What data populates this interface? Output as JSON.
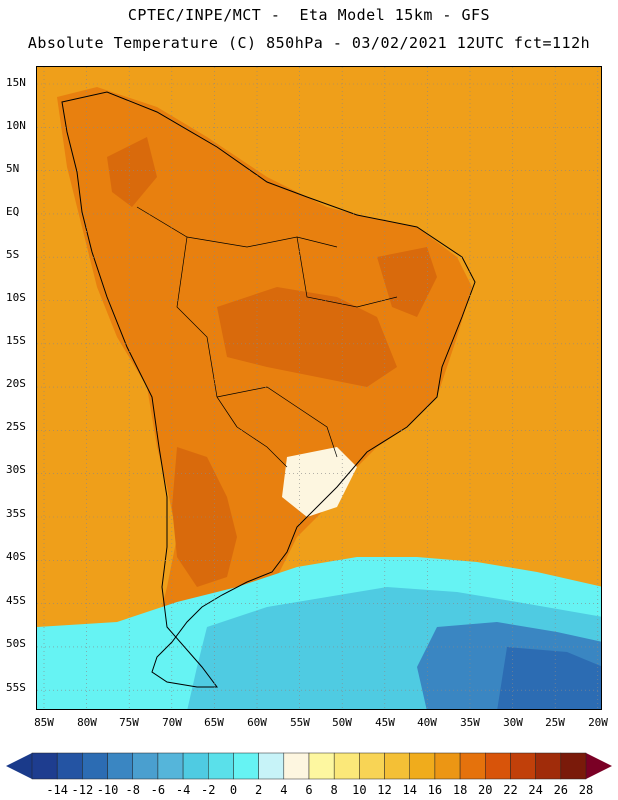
{
  "header": {
    "line1": "CPTEC/INPE/MCT -  Eta Model 15km - GFS",
    "line2": "Absolute Temperature (C) 850hPa - 03/02/2021 12UTC fct=112h"
  },
  "axes": {
    "lat_labels": [
      "15N",
      "10N",
      "5N",
      "EQ",
      "5S",
      "10S",
      "15S",
      "20S",
      "25S",
      "30S",
      "35S",
      "40S",
      "45S",
      "50S",
      "55S"
    ],
    "lon_labels": [
      "85W",
      "80W",
      "75W",
      "70W",
      "65W",
      "60W",
      "55W",
      "50W",
      "45W",
      "40W",
      "35W",
      "30W",
      "25W",
      "20W"
    ]
  },
  "colorbar": {
    "labels": [
      "-14",
      "-12",
      "-10",
      "-8",
      "-6",
      "-4",
      "-2",
      "0",
      "2",
      "4",
      "6",
      "8",
      "10",
      "12",
      "14",
      "16",
      "18",
      "20",
      "22",
      "24",
      "26",
      "28"
    ],
    "colors": [
      "#1e3d8f",
      "#2454a3",
      "#2c6cb3",
      "#3a86c2",
      "#4a9fcf",
      "#55b5da",
      "#4fcbe2",
      "#5ae0ea",
      "#66f3f3",
      "#c7f3f8",
      "#fdf6e0",
      "#fdf7a0",
      "#fbe879",
      "#f8d455",
      "#f4c036",
      "#f0ac1c",
      "#ec9614",
      "#e5720c",
      "#d8540a",
      "#c1400a",
      "#a02c0a",
      "#7a1a0a"
    ],
    "end_colors": [
      "#1a3a8a",
      "#7a0025"
    ]
  },
  "map": {
    "ocean_color": "#ef9f1a",
    "land_colors": [
      "#e8800f",
      "#d96a0c",
      "#f4c036",
      "#fdf6e0"
    ],
    "cold_colors": [
      "#66f3f3",
      "#4fcbe2",
      "#3a86c2",
      "#2c6cb3"
    ]
  }
}
